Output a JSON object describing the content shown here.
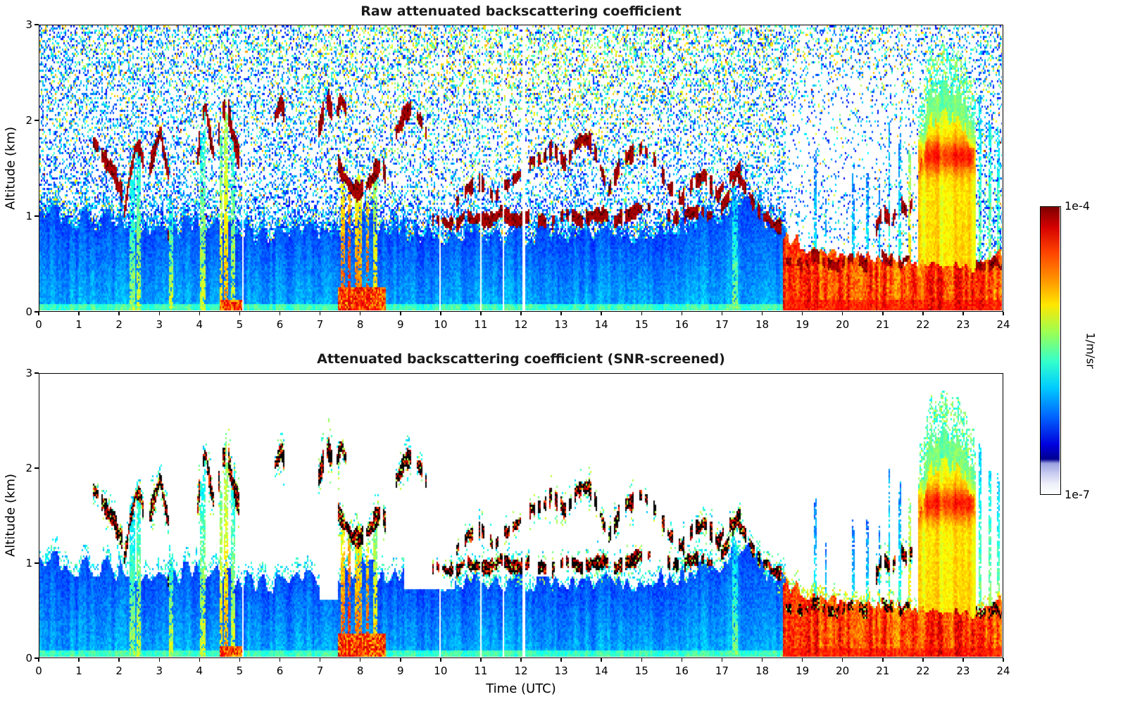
{
  "figure": {
    "background": "#ffffff"
  },
  "colorbar": {
    "top_label": "1e-4",
    "bottom_label": "1e-7",
    "unit_label": "1/m/sr",
    "colormap": "jet",
    "gradient": [
      {
        "p": 0,
        "c": "#7f0000"
      },
      {
        "p": 7,
        "c": "#d40000"
      },
      {
        "p": 16,
        "c": "#ff4400"
      },
      {
        "p": 26,
        "c": "#ff9900"
      },
      {
        "p": 34,
        "c": "#ffe600"
      },
      {
        "p": 44,
        "c": "#99ff55"
      },
      {
        "p": 54,
        "c": "#33ffcc"
      },
      {
        "p": 63,
        "c": "#00ccff"
      },
      {
        "p": 73,
        "c": "#0066ff"
      },
      {
        "p": 83,
        "c": "#0000dd"
      },
      {
        "p": 88,
        "c": "#000091"
      },
      {
        "p": 89.5,
        "c": "#9aa0e0"
      },
      {
        "p": 93,
        "c": "#c9ccf0"
      },
      {
        "p": 96.5,
        "c": "#eceef9"
      },
      {
        "p": 100,
        "c": "#ffffff"
      }
    ]
  },
  "chart_data": {
    "panels": [
      {
        "type": "heatmap",
        "title": "Raw attenuated backscattering coefficient",
        "xlabel": "",
        "ylabel": "Altitude (km)",
        "xlim": [
          0,
          24
        ],
        "ylim": [
          0,
          3
        ],
        "xticks": [
          0,
          1,
          2,
          3,
          4,
          5,
          6,
          7,
          8,
          9,
          10,
          11,
          12,
          13,
          14,
          15,
          16,
          17,
          18,
          19,
          20,
          21,
          22,
          23,
          24
        ],
        "yticks": [
          0,
          1,
          2,
          3
        ],
        "value_range": [
          "1e-7",
          "1e-4"
        ],
        "units": "1/m/sr",
        "screened": false
      },
      {
        "type": "heatmap",
        "title": "Attenuated backscattering coefficient (SNR-screened)",
        "xlabel": "Time (UTC)",
        "ylabel": "Altitude (km)",
        "xlim": [
          0,
          24
        ],
        "ylim": [
          0,
          3
        ],
        "xticks": [
          0,
          1,
          2,
          3,
          4,
          5,
          6,
          7,
          8,
          9,
          10,
          11,
          12,
          13,
          14,
          15,
          16,
          17,
          18,
          19,
          20,
          21,
          22,
          23,
          24
        ],
        "yticks": [
          0,
          1,
          2,
          3
        ],
        "value_range": [
          "1e-7",
          "1e-4"
        ],
        "units": "1/m/sr",
        "screened": true
      }
    ],
    "features": {
      "boundary_layer_top_km": [
        [
          0,
          1.05
        ],
        [
          0.7,
          1.0
        ],
        [
          1.6,
          0.95
        ],
        [
          2.6,
          0.85
        ],
        [
          4,
          0.9
        ],
        [
          5,
          0.82
        ],
        [
          6,
          0.78
        ],
        [
          7,
          0.85
        ],
        [
          8,
          0.95
        ],
        [
          9,
          0.82
        ],
        [
          10,
          0.78
        ],
        [
          11,
          0.8
        ],
        [
          12,
          0.78
        ],
        [
          13,
          0.82
        ],
        [
          14,
          0.78
        ],
        [
          15,
          0.82
        ],
        [
          16,
          0.88
        ],
        [
          17,
          1.0
        ],
        [
          17.4,
          1.25
        ],
        [
          17.8,
          1.0
        ],
        [
          18.3,
          0.9
        ],
        [
          18.6,
          0.8
        ]
      ],
      "dust_layer": {
        "t0": 18.55,
        "t1": 24,
        "top_km": [
          [
            18.55,
            0.8
          ],
          [
            19,
            0.7
          ],
          [
            19.5,
            0.63
          ],
          [
            20,
            0.6
          ],
          [
            21,
            0.56
          ],
          [
            21.9,
            0.5
          ],
          [
            23.35,
            0.45
          ],
          [
            23.6,
            0.55
          ],
          [
            24,
            0.6
          ]
        ]
      },
      "smoke_plume": {
        "t0": 21.9,
        "t1": 23.35,
        "top_km": [
          [
            21.9,
            1.6
          ],
          [
            22.05,
            2.0
          ],
          [
            22.2,
            2.25
          ],
          [
            22.35,
            2.3
          ],
          [
            22.5,
            2.4
          ],
          [
            22.7,
            2.3
          ],
          [
            22.9,
            2.33
          ],
          [
            23.1,
            2.2
          ],
          [
            23.25,
            2.05
          ],
          [
            23.35,
            1.8
          ]
        ],
        "band_km": [
          1.42,
          1.8
        ]
      },
      "cloud_tracks": [
        {
          "pts": [
            [
              1.35,
              1.78
            ],
            [
              1.62,
              1.6
            ],
            [
              1.92,
              1.38
            ],
            [
              2.08,
              1.22
            ]
          ],
          "th": 0.09,
          "gap": 0.05
        },
        {
          "pts": [
            [
              2.12,
              1.05
            ],
            [
              2.25,
              1.4
            ],
            [
              2.38,
              1.68
            ],
            [
              2.5,
              1.75
            ],
            [
              2.6,
              1.55
            ]
          ],
          "th": 0.08,
          "gap": 0.15
        },
        {
          "pts": [
            [
              2.75,
              1.5
            ],
            [
              2.9,
              1.72
            ],
            [
              3.02,
              1.88
            ],
            [
              3.12,
              1.6
            ],
            [
              3.22,
              1.42
            ]
          ],
          "th": 0.08,
          "gap": 0.15
        },
        {
          "pts": [
            [
              3.18,
              0.72
            ],
            [
              3.3,
              0.95
            ],
            [
              3.38,
              1.18
            ]
          ],
          "th": 0.07,
          "gap": 0.1
        },
        {
          "pts": [
            [
              3.95,
              1.62
            ],
            [
              4.05,
              2.0
            ],
            [
              4.15,
              2.15
            ],
            [
              4.27,
              1.8
            ],
            [
              4.37,
              1.62
            ]
          ],
          "th": 0.09,
          "gap": 0.1
        },
        {
          "pts": [
            [
              4.45,
              1.8
            ],
            [
              4.57,
              2.08
            ],
            [
              4.68,
              2.15
            ],
            [
              4.78,
              1.95
            ],
            [
              4.9,
              1.72
            ],
            [
              5.0,
              1.58
            ]
          ],
          "th": 0.09,
          "gap": 0.12
        },
        {
          "pts": [
            [
              5.88,
              2.05
            ],
            [
              6.0,
              2.18
            ],
            [
              6.12,
              2.08
            ]
          ],
          "th": 0.07,
          "gap": 0.1
        },
        {
          "pts": [
            [
              6.95,
              1.88
            ],
            [
              7.08,
              2.1
            ],
            [
              7.2,
              2.2
            ],
            [
              7.32,
              2.08
            ]
          ],
          "th": 0.09,
          "gap": 0.08
        },
        {
          "pts": [
            [
              7.4,
              2.08
            ],
            [
              7.52,
              2.25
            ],
            [
              7.64,
              2.12
            ]
          ],
          "th": 0.07,
          "gap": 0.1
        },
        {
          "pts": [
            [
              7.45,
              1.55
            ],
            [
              7.6,
              1.4
            ],
            [
              7.8,
              1.28
            ],
            [
              8.0,
              1.25
            ],
            [
              8.2,
              1.32
            ],
            [
              8.4,
              1.48
            ],
            [
              8.55,
              1.55
            ],
            [
              8.65,
              1.4
            ]
          ],
          "th": 0.08,
          "gap": 0.2
        },
        {
          "pts": [
            [
              8.9,
              1.88
            ],
            [
              9.1,
              2.08
            ],
            [
              9.3,
              2.15
            ],
            [
              9.5,
              2.0
            ],
            [
              9.65,
              1.85
            ]
          ],
          "th": 0.08,
          "gap": 0.15
        },
        {
          "pts": [
            [
              9.8,
              0.95
            ],
            [
              10.3,
              0.9
            ],
            [
              10.7,
              1.0
            ],
            [
              11.1,
              0.93
            ],
            [
              11.5,
              1.03
            ],
            [
              11.9,
              0.95
            ],
            [
              12.3,
              1.0
            ],
            [
              12.7,
              0.9
            ],
            [
              13.1,
              1.0
            ],
            [
              13.5,
              0.95
            ],
            [
              13.9,
              1.03
            ],
            [
              14.3,
              0.95
            ],
            [
              14.7,
              1.0
            ],
            [
              15.1,
              1.08
            ],
            [
              15.5,
              1.0
            ],
            [
              15.9,
              0.95
            ],
            [
              16.3,
              1.05
            ],
            [
              16.7,
              1.0
            ],
            [
              17.1,
              1.12
            ],
            [
              17.4,
              1.42
            ],
            [
              17.6,
              1.28
            ],
            [
              17.9,
              1.05
            ],
            [
              18.2,
              0.95
            ],
            [
              18.5,
              0.88
            ]
          ],
          "th": 0.06,
          "gap": 0.3
        },
        {
          "pts": [
            [
              10.4,
              1.15
            ],
            [
              10.7,
              1.3
            ],
            [
              11.0,
              1.35
            ],
            [
              11.3,
              1.2
            ],
            [
              11.6,
              1.3
            ],
            [
              11.9,
              1.4
            ],
            [
              12.2,
              1.55
            ],
            [
              12.5,
              1.6
            ],
            [
              12.8,
              1.7
            ],
            [
              13.1,
              1.55
            ],
            [
              13.4,
              1.75
            ],
            [
              13.7,
              1.8
            ],
            [
              14.0,
              1.5
            ],
            [
              14.2,
              1.25
            ],
            [
              14.5,
              1.55
            ],
            [
              14.8,
              1.65
            ],
            [
              15.1,
              1.7
            ],
            [
              15.4,
              1.55
            ],
            [
              15.7,
              1.3
            ],
            [
              16.0,
              1.15
            ],
            [
              16.3,
              1.35
            ],
            [
              16.6,
              1.4
            ],
            [
              16.9,
              1.2
            ],
            [
              17.2,
              1.4
            ],
            [
              17.5,
              1.5
            ]
          ],
          "th": 0.07,
          "gap": 0.4
        },
        {
          "pts": [
            [
              18.6,
              0.55
            ],
            [
              19.0,
              0.48
            ],
            [
              19.4,
              0.58
            ],
            [
              19.8,
              0.45
            ],
            [
              20.2,
              0.55
            ],
            [
              20.6,
              0.48
            ],
            [
              21.0,
              0.58
            ],
            [
              21.4,
              0.48
            ],
            [
              21.75,
              0.55
            ]
          ],
          "th": 0.05,
          "gap": 0.25,
          "dark": true
        },
        {
          "pts": [
            [
              23.35,
              0.5
            ],
            [
              23.6,
              0.44
            ],
            [
              23.8,
              0.5
            ],
            [
              24,
              0.46
            ]
          ],
          "th": 0.05,
          "gap": 0.2,
          "dark": true
        },
        {
          "pts": [
            [
              20.85,
              0.85
            ],
            [
              21.05,
              1.05
            ],
            [
              21.25,
              0.9
            ],
            [
              21.45,
              1.15
            ],
            [
              21.65,
              1.0
            ],
            [
              21.8,
              1.15
            ]
          ],
          "th": 0.06,
          "gap": 0.35
        }
      ],
      "precip_columns": [
        {
          "t": 2.32,
          "w": 0.12,
          "top": 1.65,
          "v": 0.55
        },
        {
          "t": 2.48,
          "w": 0.1,
          "top": 1.72,
          "v": 0.6
        },
        {
          "t": 3.28,
          "w": 0.1,
          "top": 1.15,
          "v": 0.6
        },
        {
          "t": 4.08,
          "w": 0.12,
          "top": 2.0,
          "v": 0.6
        },
        {
          "t": 4.52,
          "w": 0.08,
          "top": 2.05,
          "v": 0.68
        },
        {
          "t": 4.66,
          "w": 0.1,
          "top": 2.1,
          "v": 0.72
        },
        {
          "t": 4.82,
          "w": 0.12,
          "top": 1.9,
          "v": 0.6
        },
        {
          "t": 7.58,
          "w": 0.1,
          "top": 1.38,
          "v": 0.82
        },
        {
          "t": 7.72,
          "w": 0.09,
          "top": 1.28,
          "v": 0.88
        },
        {
          "t": 7.95,
          "w": 0.16,
          "top": 1.28,
          "v": 0.8
        },
        {
          "t": 8.18,
          "w": 0.1,
          "top": 1.35,
          "v": 0.85
        },
        {
          "t": 8.38,
          "w": 0.12,
          "top": 1.5,
          "v": 0.7
        },
        {
          "t": 17.35,
          "w": 0.12,
          "top": 1.35,
          "v": 0.52
        },
        {
          "t": 19.35,
          "w": 0.05,
          "top": 1.5,
          "v": 0.45
        },
        {
          "t": 19.6,
          "w": 0.04,
          "top": 1.28,
          "v": 0.45
        },
        {
          "t": 20.3,
          "w": 0.05,
          "top": 1.5,
          "v": 0.45
        },
        {
          "t": 20.65,
          "w": 0.05,
          "top": 1.62,
          "v": 0.45
        },
        {
          "t": 20.95,
          "w": 0.04,
          "top": 1.3,
          "v": 0.45
        },
        {
          "t": 21.2,
          "w": 0.05,
          "top": 1.9,
          "v": 0.48
        },
        {
          "t": 21.45,
          "w": 0.06,
          "top": 2.0,
          "v": 0.48
        },
        {
          "t": 21.7,
          "w": 0.09,
          "top": 1.55,
          "v": 0.72
        },
        {
          "t": 23.45,
          "w": 0.06,
          "top": 2.05,
          "v": 0.55
        },
        {
          "t": 23.7,
          "w": 0.07,
          "top": 2.2,
          "v": 0.58
        },
        {
          "t": 23.9,
          "w": 0.06,
          "top": 1.9,
          "v": 0.55
        }
      ],
      "surface_hot_strips": [
        [
          4.5,
          5.05,
          0.12
        ],
        [
          7.45,
          8.65,
          0.25
        ]
      ],
      "white_gaps_t": [
        5.08,
        9.98,
        11.0,
        11.58,
        12.08
      ],
      "bl_holes": [
        {
          "t0": 9.1,
          "t1": 10.35,
          "z": 0.72
        },
        {
          "t0": 12.4,
          "t1": 13.7,
          "z": 0.85
        },
        {
          "t0": 7.0,
          "t1": 7.45,
          "z": 0.6
        }
      ]
    }
  }
}
